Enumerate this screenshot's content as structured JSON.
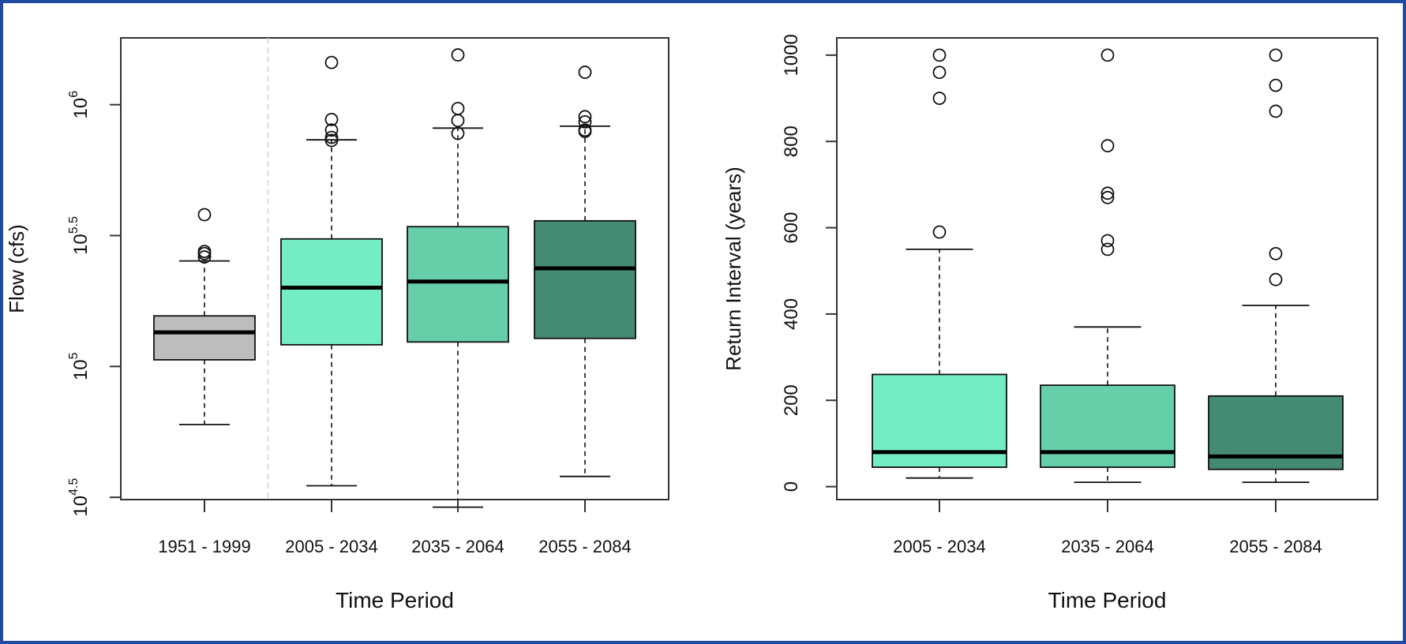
{
  "chart_data": [
    {
      "type": "box",
      "xlabel": "Time Period",
      "ylabel": "Flow (cfs)",
      "y_scale": "log10",
      "ylim": [
        31000,
        1800000
      ],
      "yticks": [
        {
          "value": 31623,
          "base": "10",
          "exp": "4.5"
        },
        {
          "value": 100000,
          "base": "10",
          "exp": "5"
        },
        {
          "value": 316228,
          "base": "10",
          "exp": "5.5"
        },
        {
          "value": 1000000,
          "base": "10",
          "exp": "6"
        }
      ],
      "divider_after_index": 0,
      "boxes": [
        {
          "label": "1951 - 1999",
          "color": "#bdbdbd",
          "whisker_low": 60000,
          "q1": 106000,
          "median": 135000,
          "q3": 156000,
          "whisker_high": 253000,
          "outliers": [
            380000,
            275000,
            270000,
            262000
          ]
        },
        {
          "label": "2005 - 2034",
          "color": "#74edc4",
          "whisker_low": 35000,
          "q1": 121000,
          "median": 200000,
          "q3": 307000,
          "whisker_high": 734000,
          "outliers": [
            1450000,
            878000,
            800000,
            750000,
            730000
          ]
        },
        {
          "label": "2035 - 2064",
          "color": "#67ceaa",
          "whisker_low": 29000,
          "q1": 124000,
          "median": 211000,
          "q3": 342000,
          "whisker_high": 814000,
          "outliers": [
            1550000,
            967000,
            870000,
            777000
          ]
        },
        {
          "label": "2055 - 2084",
          "color": "#458a72",
          "whisker_low": 38000,
          "q1": 128000,
          "median": 237000,
          "q3": 360000,
          "whisker_high": 828000,
          "outliers": [
            1330000,
            900000,
            860000,
            800000,
            790000
          ]
        }
      ]
    },
    {
      "type": "box",
      "xlabel": "Time Period",
      "ylabel": "Return Interval (years)",
      "y_scale": "linear",
      "ylim": [
        -30,
        1040
      ],
      "yticks": [
        {
          "value": 0,
          "label": "0"
        },
        {
          "value": 200,
          "label": "200"
        },
        {
          "value": 400,
          "label": "400"
        },
        {
          "value": 600,
          "label": "600"
        },
        {
          "value": 800,
          "label": "800"
        },
        {
          "value": 1000,
          "label": "1000"
        }
      ],
      "boxes": [
        {
          "label": "2005 - 2034",
          "color": "#74edc4",
          "whisker_low": 20,
          "q1": 45,
          "median": 80,
          "q3": 260,
          "whisker_high": 550,
          "outliers": [
            1000,
            960,
            900,
            590
          ]
        },
        {
          "label": "2035 - 2064",
          "color": "#67ceaa",
          "whisker_low": 10,
          "q1": 45,
          "median": 80,
          "q3": 235,
          "whisker_high": 370,
          "outliers": [
            1000,
            790,
            680,
            670,
            570,
            550
          ]
        },
        {
          "label": "2055 - 2084",
          "color": "#458a72",
          "whisker_low": 10,
          "q1": 40,
          "median": 70,
          "q3": 210,
          "whisker_high": 420,
          "outliers": [
            1000,
            930,
            870,
            540,
            480
          ]
        }
      ]
    }
  ]
}
